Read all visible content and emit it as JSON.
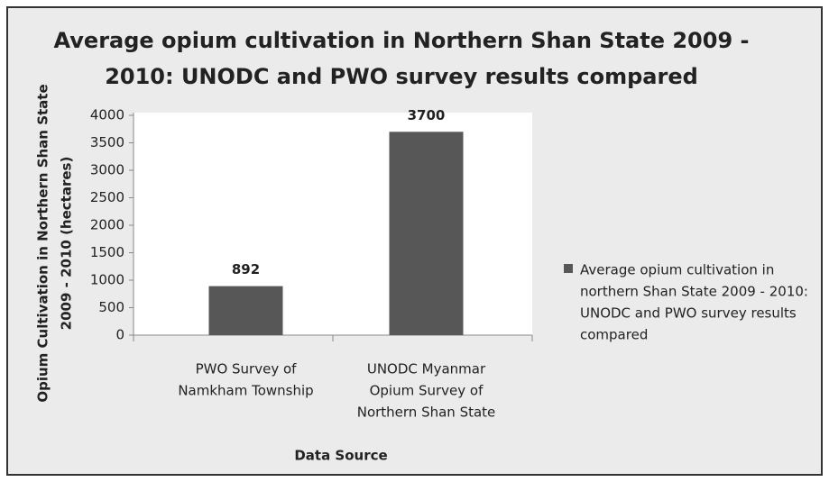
{
  "chart_data": {
    "type": "bar",
    "title": [
      "Average opium cultivation in Northern Shan State 2009 -",
      "2010: UNODC and PWO survey results compared"
    ],
    "y_label": [
      "Opium Cultivation  in Northern Shan  State",
      "2009 - 2010  (hectares)"
    ],
    "x_label": "Data Source",
    "categories": [
      [
        "PWO Survey of",
        "Namkham Township"
      ],
      [
        "UNODC Myanmar",
        "Opium Survey of",
        "Northern Shan State"
      ]
    ],
    "series": [
      {
        "name": [
          "Average opium cultivation in",
          "northern Shan State 2009 - 2010:",
          "UNODC and PWO survey  results",
          "compared"
        ],
        "color": "#575757",
        "values": [
          892,
          3700
        ]
      }
    ],
    "ylim": [
      0,
      4000
    ],
    "yticks": [
      0,
      500,
      1000,
      1500,
      2000,
      2500,
      3000,
      3500,
      4000
    ],
    "legend": "right"
  }
}
